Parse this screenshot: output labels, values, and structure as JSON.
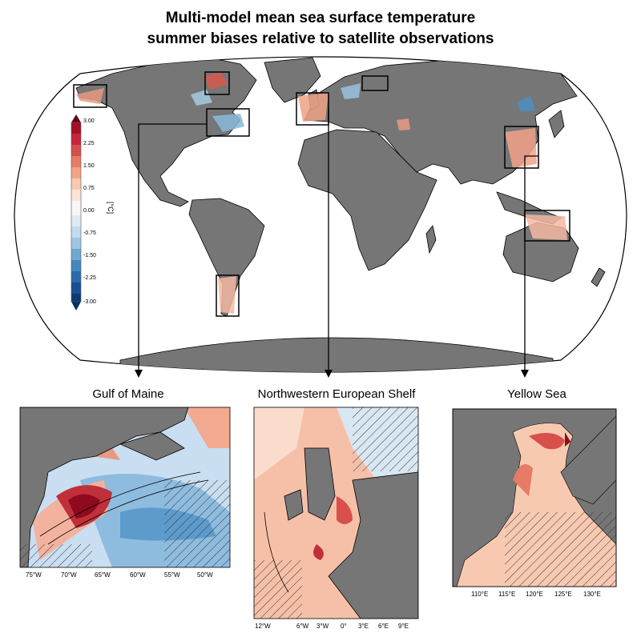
{
  "title_line1": "Multi-model mean sea surface temperature",
  "title_line2": "summer biases relative to satellite observations",
  "colorbar": {
    "label": "[°C]",
    "ticks": [
      "3.00",
      "2.25",
      "1.50",
      "0.75",
      "0.00",
      "-0.75",
      "-1.50",
      "-2.25",
      "-3.00"
    ],
    "warm_color": "#b2182b",
    "cool_color": "#2166ac",
    "neutral_color": "#f7f7f7",
    "land_color": "#767676"
  },
  "panels": [
    {
      "title": "Gulf of Maine",
      "xticks": [
        "75°W",
        "70°W",
        "65°W",
        "60°W",
        "55°W",
        "50°W"
      ]
    },
    {
      "title": "Northwestern European Shelf",
      "xticks": [
        "12°W",
        "6°W",
        "3°W",
        "0°",
        "3°E",
        "6°E",
        "9°E"
      ]
    },
    {
      "title": "Yellow Sea",
      "xticks": [
        "110°E",
        "115°E",
        "120°E",
        "125°E",
        "130°E"
      ]
    }
  ]
}
